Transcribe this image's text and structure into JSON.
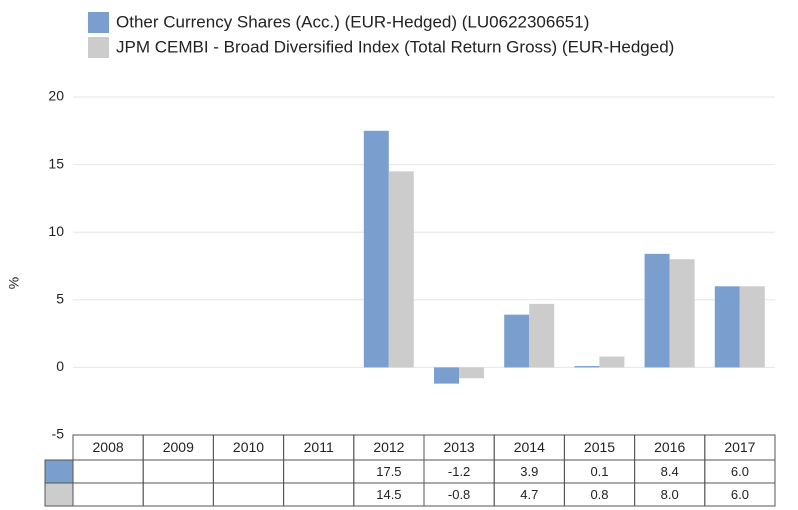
{
  "chart_data": {
    "type": "bar",
    "y_label": "%",
    "categories": [
      "2008",
      "2009",
      "2010",
      "2011",
      "2012",
      "2013",
      "2014",
      "2015",
      "2016",
      "2017"
    ],
    "series": [
      {
        "name": "Other Currency Shares (Acc.) (EUR-Hedged) (LU0622306651)",
        "color": "#7a9fcf",
        "values": [
          null,
          null,
          null,
          null,
          17.5,
          -1.2,
          3.9,
          0.1,
          8.4,
          6
        ],
        "value_labels": [
          null,
          null,
          null,
          null,
          "17.5",
          "-1.2",
          "3.9",
          "0.1",
          "8.4",
          "6.0"
        ]
      },
      {
        "name": "JPM CEMBI - Broad Diversified Index (Total Return Gross) (EUR-Hedged)",
        "color": "#cccccc",
        "values": [
          null,
          null,
          null,
          null,
          14.5,
          -0.8,
          4.7,
          0.8,
          8,
          6
        ],
        "value_labels": [
          null,
          null,
          null,
          null,
          "14.5",
          "-0.8",
          "4.7",
          "0.8",
          "8.0",
          "6.0"
        ]
      }
    ],
    "ylim": [
      -5,
      20
    ],
    "yticks": [
      -5,
      0,
      5,
      10,
      15,
      20
    ],
    "grid": true,
    "legend": "top"
  }
}
